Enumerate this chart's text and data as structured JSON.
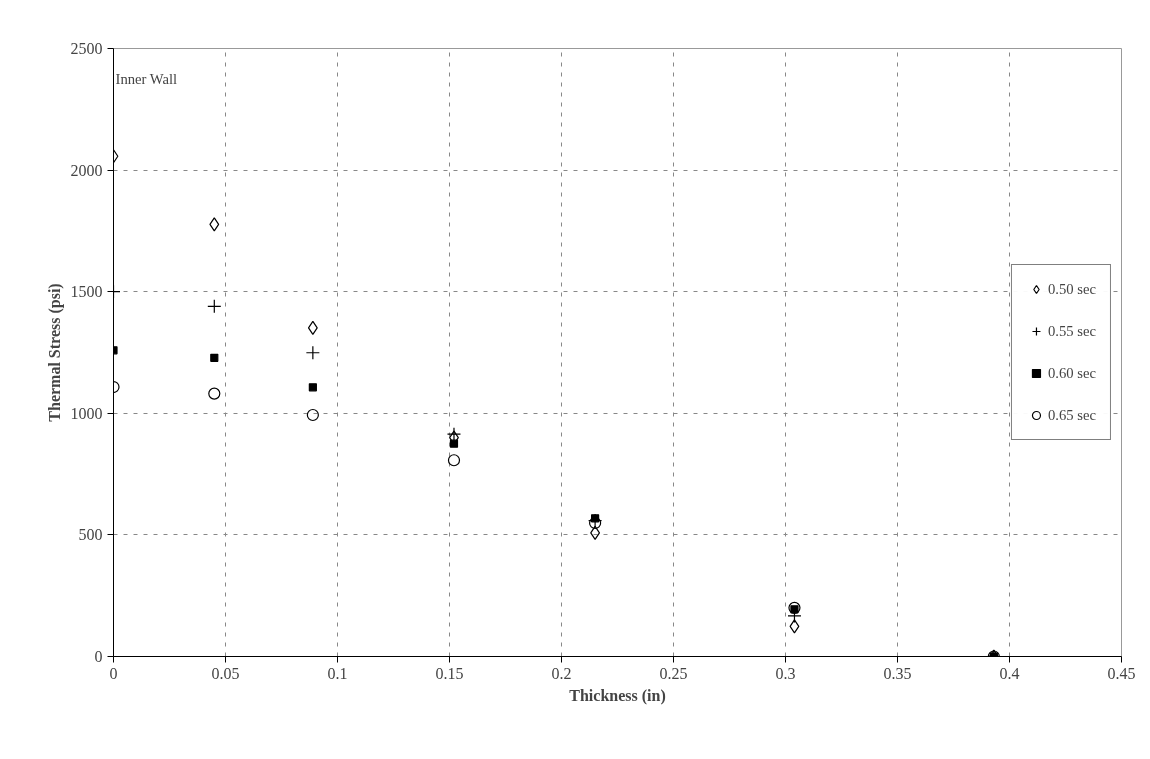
{
  "chart_data": {
    "type": "scatter",
    "xlabel": "Thickness (in)",
    "ylabel": "Thermal Stress (psi)",
    "x": [
      0,
      0.045,
      0.089,
      0.152,
      0.215,
      0.304,
      0.393
    ],
    "series": [
      {
        "name": "0.50 sec",
        "color": "#000000",
        "marker": "diamond",
        "values": [
          2057,
          1777,
          1351,
          900,
          508,
          124,
          0
        ]
      },
      {
        "name": "0.55 sec",
        "color": "#000000",
        "marker": "cross",
        "values": [
          1500,
          1440,
          1249,
          914,
          559,
          167,
          0
        ]
      },
      {
        "name": "0.60 sec",
        "color": "#000000",
        "marker": "square",
        "values": [
          1259,
          1228,
          1107,
          875,
          568,
          194,
          0
        ]
      },
      {
        "name": "0.65 sec",
        "color": "#000000",
        "marker": "circle",
        "values": [
          1108,
          1081,
          993,
          807,
          549,
          200,
          0
        ]
      }
    ],
    "xlim": [
      0,
      0.45
    ],
    "xticks": [
      0,
      0.05,
      0.1,
      0.15,
      0.2,
      0.25,
      0.3,
      0.35,
      0.4,
      0.45
    ],
    "ylim": [
      0,
      2500
    ],
    "yticks": [
      0,
      500,
      1000,
      1500,
      2000,
      2500
    ],
    "grid": true,
    "legend": "right",
    "annotations": [
      "Inner Wall"
    ]
  }
}
